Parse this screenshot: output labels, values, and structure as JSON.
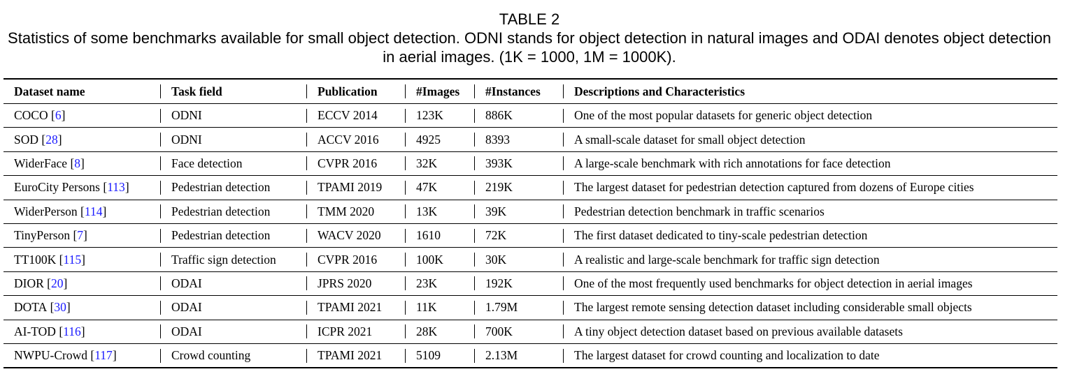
{
  "caption": {
    "label": "TABLE 2",
    "text": "Statistics of some benchmarks available for small object detection. ODNI stands for object detection in natural images and ODAI denotes object detection in aerial images. (1K = 1000, 1M = 1000K)."
  },
  "table": {
    "headers": [
      "Dataset name",
      "Task field",
      "Publication",
      "#Images",
      "#Instances",
      "Descriptions and Characteristics"
    ],
    "rows": [
      {
        "name": "COCO",
        "ref": "6",
        "task": "ODNI",
        "pub": "ECCV 2014",
        "images": "123K",
        "instances": "886K",
        "desc": "One of the most popular datasets for generic object detection"
      },
      {
        "name": "SOD",
        "ref": "28",
        "task": "ODNI",
        "pub": "ACCV 2016",
        "images": "4925",
        "instances": "8393",
        "desc": "A small-scale dataset for small object detection"
      },
      {
        "name": "WiderFace",
        "ref": "8",
        "task": "Face detection",
        "pub": "CVPR 2016",
        "images": "32K",
        "instances": "393K",
        "desc": "A large-scale benchmark with rich annotations for face detection"
      },
      {
        "name": "EuroCity Persons",
        "ref": "113",
        "task": "Pedestrian detection",
        "pub": "TPAMI 2019",
        "images": "47K",
        "instances": "219K",
        "desc": "The largest dataset for pedestrian detection captured from dozens of Europe cities"
      },
      {
        "name": "WiderPerson",
        "ref": "114",
        "task": "Pedestrian detection",
        "pub": "TMM 2020",
        "images": "13K",
        "instances": "39K",
        "desc": "Pedestrian detection benchmark in traffic scenarios"
      },
      {
        "name": "TinyPerson",
        "ref": "7",
        "task": "Pedestrian detection",
        "pub": "WACV 2020",
        "images": "1610",
        "instances": "72K",
        "desc": "The first dataset dedicated to tiny-scale pedestrian detection"
      },
      {
        "name": "TT100K",
        "ref": "115",
        "task": "Traffic sign detection",
        "pub": "CVPR 2016",
        "images": "100K",
        "instances": "30K",
        "desc": "A realistic and large-scale benchmark for traffic sign detection"
      },
      {
        "name": "DIOR",
        "ref": "20",
        "task": "ODAI",
        "pub": "JPRS 2020",
        "images": "23K",
        "instances": "192K",
        "desc": "One of the most frequently used benchmarks for object detection in aerial images"
      },
      {
        "name": "DOTA",
        "ref": "30",
        "task": "ODAI",
        "pub": "TPAMI 2021",
        "images": "11K",
        "instances": "1.79M",
        "desc": "The largest remote sensing detection dataset including considerable small objects"
      },
      {
        "name": "AI-TOD",
        "ref": "116",
        "task": "ODAI",
        "pub": "ICPR 2021",
        "images": "28K",
        "instances": "700K",
        "desc": "A tiny object detection dataset based on previous available datasets"
      },
      {
        "name": "NWPU-Crowd",
        "ref": "117",
        "task": "Crowd counting",
        "pub": "TPAMI 2021",
        "images": "5109",
        "instances": "2.13M",
        "desc": "The largest dataset for crowd counting and localization to date"
      }
    ]
  }
}
